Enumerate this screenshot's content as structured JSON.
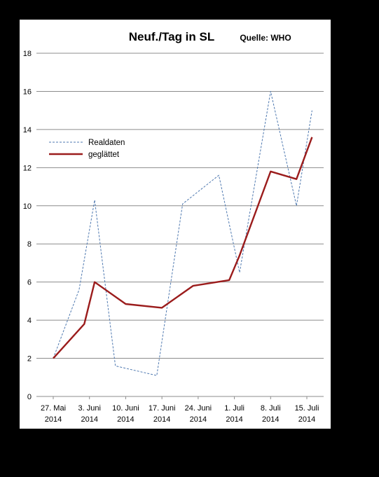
{
  "chart_data": {
    "type": "line",
    "title": "Neuf./Tag  in SL",
    "source": "Quelle: WHO",
    "xlabel": "",
    "ylabel": "",
    "ylim": [
      0,
      18
    ],
    "yticks": [
      0,
      2,
      4,
      6,
      8,
      10,
      12,
      14,
      16,
      18
    ],
    "grid": true,
    "legend_position": "top-left",
    "x_tick_labels": [
      {
        "date": "27. Mai",
        "year": "2014"
      },
      {
        "date": "3. Juni",
        "year": "2014"
      },
      {
        "date": "10. Juni",
        "year": "2014"
      },
      {
        "date": "17. Juni",
        "year": "2014"
      },
      {
        "date": "24. Juni",
        "year": "2014"
      },
      {
        "date": "1. Juli",
        "year": "2014"
      },
      {
        "date": "8. Juli",
        "year": "2014"
      },
      {
        "date": "15. Juli",
        "year": "2014"
      }
    ],
    "x_dates": [
      "2014-05-27",
      "2014-06-03",
      "2014-06-10",
      "2014-06-17",
      "2014-06-24",
      "2014-07-01",
      "2014-07-08",
      "2014-07-15"
    ],
    "series": [
      {
        "name": "Realdaten",
        "color": "#4f79b0",
        "style": "dashed",
        "points": [
          {
            "x": "2014-05-27",
            "y": 2.0
          },
          {
            "x": "2014-06-01",
            "y": 5.6
          },
          {
            "x": "2014-06-04",
            "y": 10.3
          },
          {
            "x": "2014-06-08",
            "y": 1.6
          },
          {
            "x": "2014-06-16",
            "y": 1.1
          },
          {
            "x": "2014-06-21",
            "y": 10.1
          },
          {
            "x": "2014-06-28",
            "y": 11.6
          },
          {
            "x": "2014-07-02",
            "y": 6.5
          },
          {
            "x": "2014-07-08",
            "y": 16.0
          },
          {
            "x": "2014-07-13",
            "y": 10.0
          },
          {
            "x": "2014-07-16",
            "y": 15.0
          }
        ]
      },
      {
        "name": "geglättet",
        "color": "#9b1c1c",
        "style": "solid",
        "points": [
          {
            "x": "2014-05-27",
            "y": 2.0
          },
          {
            "x": "2014-06-02",
            "y": 3.8
          },
          {
            "x": "2014-06-04",
            "y": 6.0
          },
          {
            "x": "2014-06-10",
            "y": 4.85
          },
          {
            "x": "2014-06-17",
            "y": 4.65
          },
          {
            "x": "2014-06-23",
            "y": 5.8
          },
          {
            "x": "2014-06-30",
            "y": 6.1
          },
          {
            "x": "2014-07-02",
            "y": 7.4
          },
          {
            "x": "2014-07-08",
            "y": 11.8
          },
          {
            "x": "2014-07-13",
            "y": 11.4
          },
          {
            "x": "2014-07-16",
            "y": 13.6
          }
        ]
      }
    ]
  }
}
